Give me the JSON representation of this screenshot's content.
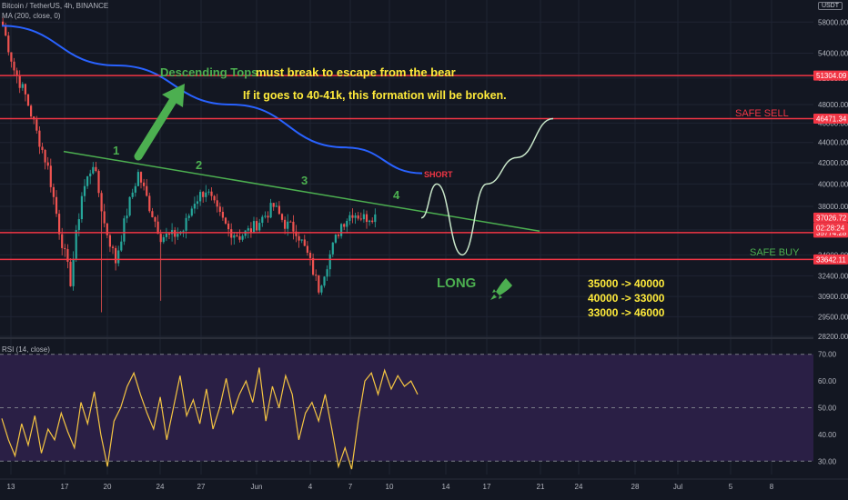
{
  "header": {
    "symbol": "Bitcoin / TetherUS, 4h, BINANCE",
    "ma_label": "MA (200, close, 0)",
    "currency": "USDT"
  },
  "rsi_header": "RSI (14, close)",
  "annotations": {
    "descending_tops": "Descending Tops",
    "must_break": "must break to escape from the bear",
    "formation_note": "If it goes to 40-41k, this formation will be broken.",
    "safe_sell": "SAFE SELL",
    "safe_buy": "SAFE BUY",
    "short": "SHORT",
    "long": "LONG",
    "top1": "1",
    "top2": "2",
    "top3": "3",
    "top4": "4",
    "plan1": "35000 -> 40000",
    "plan2": "40000 -> 33000",
    "plan3": "33000 -> 46000"
  },
  "colors": {
    "background": "#131722",
    "rsi_band": "#2a1f45",
    "ma_line": "#2962ff",
    "trend_line": "#4caf50",
    "level_line": "#f23645",
    "annotation_yellow": "#ffeb3b",
    "annotation_green": "#4caf50",
    "projection": "#c8e6c9",
    "rsi_line": "#f5c542",
    "candle_up": "#26a69a",
    "candle_down": "#ef5350"
  },
  "chart_data": [
    {
      "type": "candlestick",
      "title": "Bitcoin / TetherUS, 4h, BINANCE",
      "x_ticks": [
        "13",
        "17",
        "20",
        "24",
        "27",
        "Jun",
        "4",
        "7",
        "10",
        "14",
        "17",
        "21",
        "24",
        "28",
        "Jul",
        "5",
        "8"
      ],
      "y_ticks": [
        58000,
        54000,
        51000,
        48000,
        46000,
        44000,
        42000,
        40000,
        38000,
        36000,
        34000,
        32400,
        30900,
        29500,
        28200
      ],
      "ylim": [
        28200,
        60000
      ],
      "scale": "log",
      "price_path": [
        57500,
        52000,
        49000,
        45000,
        41500,
        36000,
        32000,
        39000,
        42000,
        36500,
        33500,
        37500,
        41000,
        38000,
        35500,
        35500,
        36000,
        38500,
        39500,
        37500,
        36000,
        35500,
        36000,
        37000,
        38000,
        36500,
        36000,
        34000,
        31500,
        34000,
        36500,
        37500,
        37000,
        37300
      ],
      "series": [
        {
          "name": "MA (200, close, 0)",
          "x": [
            0,
            15,
            30,
            45,
            55
          ],
          "values": [
            57500,
            52500,
            48000,
            43500,
            41000
          ]
        }
      ],
      "trend_line": {
        "x": [
          4,
          35
        ],
        "values": [
          43100,
          35900
        ]
      },
      "levels": [
        {
          "label": "51304.09",
          "value": 51304.09
        },
        {
          "label": "46471.34",
          "value": 46471.34
        },
        {
          "label": "37026.72",
          "value": 37026.72
        },
        {
          "label": "35774.28",
          "value": 35774.28
        },
        {
          "label": "33642.11",
          "value": 33642.11
        }
      ],
      "countdown": "02:28:24",
      "projection": {
        "x": [
          27,
          28.5,
          30,
          31.5,
          33,
          36
        ],
        "values": [
          37000,
          40000,
          34000,
          40000,
          42500,
          46471
        ]
      }
    },
    {
      "type": "line",
      "title": "RSI (14, close)",
      "y_ticks": [
        70,
        60,
        50,
        40,
        30
      ],
      "ylim": [
        25,
        75
      ],
      "band": [
        30,
        70
      ],
      "series": [
        {
          "name": "RSI (14, close)",
          "values": [
            46,
            38,
            32,
            44,
            36,
            47,
            33,
            42,
            38,
            48,
            41,
            35,
            52,
            44,
            56,
            40,
            28,
            45,
            50,
            58,
            63,
            55,
            48,
            42,
            54,
            38,
            50,
            62,
            47,
            53,
            44,
            57,
            42,
            50,
            61,
            48,
            55,
            60,
            52,
            65,
            45,
            58,
            50,
            62,
            55,
            38,
            48,
            52,
            45,
            55,
            42,
            28,
            35,
            27,
            45,
            60,
            63,
            55,
            64,
            57,
            62,
            58,
            60,
            55
          ]
        }
      ]
    }
  ]
}
